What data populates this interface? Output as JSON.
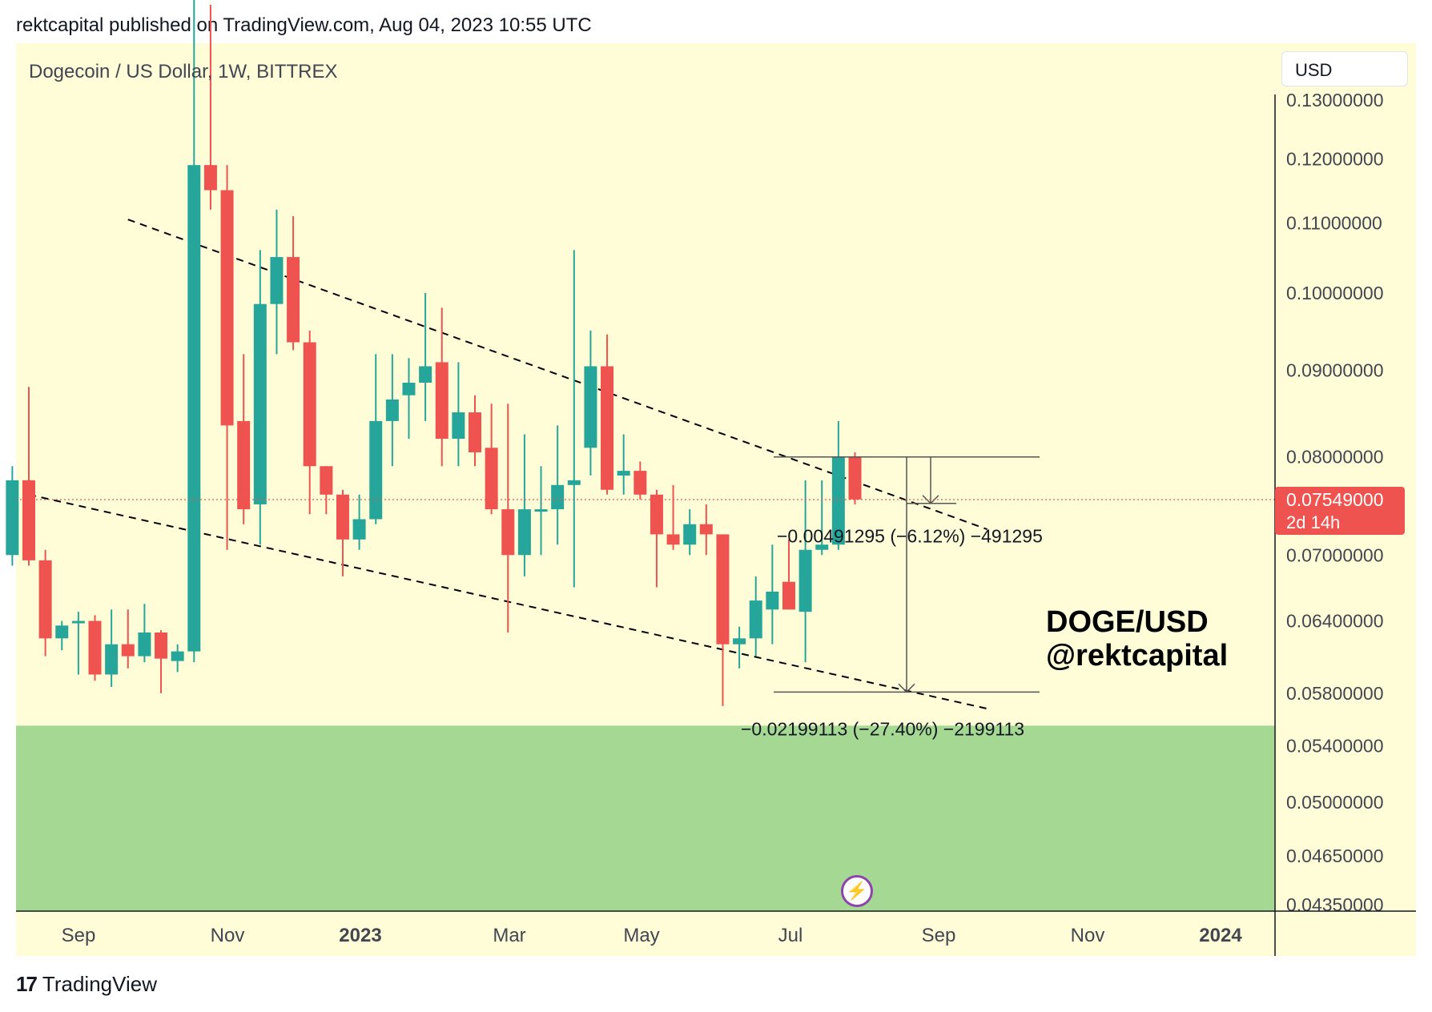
{
  "header": {
    "published_text": "rektcapital published on TradingView.com, Aug 04, 2023 10:55 UTC"
  },
  "chart_title": "Dogecoin / US Dollar, 1W, BITTREX",
  "currency_label": "USD",
  "watermark": {
    "line1": "DOGE/USD",
    "line2": "@rektcapital"
  },
  "footer": {
    "logo_icon": "tradingview-logo-icon",
    "brand": "TradingView"
  },
  "colors": {
    "background": "#fefdd8",
    "support_zone": "#a5d893",
    "bull": "#26a69a",
    "bear": "#ef5350",
    "price_line": "#ef5350",
    "trendline": "#000000"
  },
  "chart_data": {
    "type": "candlestick",
    "timeframe": "1W",
    "symbol": "DOGE/USD",
    "exchange": "BITTREX",
    "y_axis": {
      "position": "right",
      "scale": "log",
      "range": [
        0.0435,
        0.132
      ],
      "tick_labels": [
        "0.13000000",
        "0.12000000",
        "0.11000000",
        "0.10000000",
        "0.09000000",
        "0.08000000",
        "0.07000000",
        "0.06400000",
        "0.05800000",
        "0.05400000",
        "0.05000000",
        "0.04650000",
        "0.04350000"
      ]
    },
    "x_axis": {
      "tick_labels": [
        {
          "label": "Sep",
          "bold": false
        },
        {
          "label": "Nov",
          "bold": false
        },
        {
          "label": "2023",
          "bold": true
        },
        {
          "label": "Mar",
          "bold": false
        },
        {
          "label": "May",
          "bold": false
        },
        {
          "label": "Jul",
          "bold": false
        },
        {
          "label": "Sep",
          "bold": false
        },
        {
          "label": "Nov",
          "bold": false
        },
        {
          "label": "2024",
          "bold": true
        }
      ]
    },
    "candles": [
      {
        "date": "2022-08-08",
        "o": 0.07,
        "h": 0.079,
        "l": 0.069,
        "c": 0.0775
      },
      {
        "date": "2022-08-15",
        "o": 0.0775,
        "h": 0.088,
        "l": 0.069,
        "c": 0.0695
      },
      {
        "date": "2022-08-22",
        "o": 0.0695,
        "h": 0.0705,
        "l": 0.061,
        "c": 0.0625
      },
      {
        "date": "2022-08-29",
        "o": 0.0625,
        "h": 0.064,
        "l": 0.0615,
        "c": 0.0636
      },
      {
        "date": "2022-09-05",
        "o": 0.0638,
        "h": 0.0648,
        "l": 0.0595,
        "c": 0.064
      },
      {
        "date": "2022-09-12",
        "o": 0.064,
        "h": 0.0645,
        "l": 0.059,
        "c": 0.0595
      },
      {
        "date": "2022-09-19",
        "o": 0.0595,
        "h": 0.065,
        "l": 0.0585,
        "c": 0.062
      },
      {
        "date": "2022-09-26",
        "o": 0.062,
        "h": 0.065,
        "l": 0.06,
        "c": 0.061
      },
      {
        "date": "2022-10-03",
        "o": 0.061,
        "h": 0.0655,
        "l": 0.0605,
        "c": 0.063
      },
      {
        "date": "2022-10-10",
        "o": 0.063,
        "h": 0.0632,
        "l": 0.058,
        "c": 0.0608
      },
      {
        "date": "2022-10-17",
        "o": 0.0606,
        "h": 0.062,
        "l": 0.0597,
        "c": 0.0614
      },
      {
        "date": "2022-10-24",
        "o": 0.0614,
        "h": 0.155,
        "l": 0.0605,
        "c": 0.119
      },
      {
        "date": "2022-10-31",
        "o": 0.119,
        "h": 0.148,
        "l": 0.112,
        "c": 0.115
      },
      {
        "date": "2022-11-07",
        "o": 0.115,
        "h": 0.119,
        "l": 0.0705,
        "c": 0.0835
      },
      {
        "date": "2022-11-14",
        "o": 0.084,
        "h": 0.092,
        "l": 0.073,
        "c": 0.0745
      },
      {
        "date": "2022-11-21",
        "o": 0.075,
        "h": 0.106,
        "l": 0.071,
        "c": 0.0985
      },
      {
        "date": "2022-11-28",
        "o": 0.0985,
        "h": 0.112,
        "l": 0.092,
        "c": 0.105
      },
      {
        "date": "2022-12-05",
        "o": 0.105,
        "h": 0.111,
        "l": 0.0925,
        "c": 0.0935
      },
      {
        "date": "2022-12-12",
        "o": 0.0935,
        "h": 0.095,
        "l": 0.074,
        "c": 0.079
      },
      {
        "date": "2022-12-19",
        "o": 0.079,
        "h": 0.079,
        "l": 0.074,
        "c": 0.076
      },
      {
        "date": "2022-12-26",
        "o": 0.076,
        "h": 0.0765,
        "l": 0.068,
        "c": 0.0715
      },
      {
        "date": "2023-01-02",
        "o": 0.0715,
        "h": 0.076,
        "l": 0.0705,
        "c": 0.0735
      },
      {
        "date": "2023-01-09",
        "o": 0.0735,
        "h": 0.092,
        "l": 0.073,
        "c": 0.084
      },
      {
        "date": "2023-01-16",
        "o": 0.084,
        "h": 0.092,
        "l": 0.079,
        "c": 0.0865
      },
      {
        "date": "2023-01-23",
        "o": 0.087,
        "h": 0.0915,
        "l": 0.082,
        "c": 0.0885
      },
      {
        "date": "2023-01-30",
        "o": 0.0885,
        "h": 0.1,
        "l": 0.084,
        "c": 0.0905
      },
      {
        "date": "2023-02-06",
        "o": 0.091,
        "h": 0.098,
        "l": 0.079,
        "c": 0.082
      },
      {
        "date": "2023-02-13",
        "o": 0.082,
        "h": 0.091,
        "l": 0.079,
        "c": 0.085
      },
      {
        "date": "2023-02-20",
        "o": 0.085,
        "h": 0.087,
        "l": 0.079,
        "c": 0.0805
      },
      {
        "date": "2023-02-27",
        "o": 0.081,
        "h": 0.086,
        "l": 0.074,
        "c": 0.0745
      },
      {
        "date": "2023-03-06",
        "o": 0.0745,
        "h": 0.086,
        "l": 0.063,
        "c": 0.07
      },
      {
        "date": "2023-03-13",
        "o": 0.07,
        "h": 0.0825,
        "l": 0.068,
        "c": 0.0745
      },
      {
        "date": "2023-03-20",
        "o": 0.0745,
        "h": 0.079,
        "l": 0.07,
        "c": 0.0745
      },
      {
        "date": "2023-03-27",
        "o": 0.0745,
        "h": 0.0835,
        "l": 0.071,
        "c": 0.077
      },
      {
        "date": "2023-04-03",
        "o": 0.077,
        "h": 0.106,
        "l": 0.067,
        "c": 0.0775
      },
      {
        "date": "2023-04-10",
        "o": 0.081,
        "h": 0.095,
        "l": 0.078,
        "c": 0.0905
      },
      {
        "date": "2023-04-17",
        "o": 0.0905,
        "h": 0.0945,
        "l": 0.076,
        "c": 0.0765
      },
      {
        "date": "2023-04-24",
        "o": 0.078,
        "h": 0.0825,
        "l": 0.076,
        "c": 0.0785
      },
      {
        "date": "2023-05-01",
        "o": 0.0785,
        "h": 0.0795,
        "l": 0.0755,
        "c": 0.076
      },
      {
        "date": "2023-05-08",
        "o": 0.076,
        "h": 0.0765,
        "l": 0.067,
        "c": 0.072
      },
      {
        "date": "2023-05-15",
        "o": 0.072,
        "h": 0.077,
        "l": 0.0705,
        "c": 0.071
      },
      {
        "date": "2023-05-22",
        "o": 0.071,
        "h": 0.0745,
        "l": 0.07,
        "c": 0.073
      },
      {
        "date": "2023-05-29",
        "o": 0.073,
        "h": 0.075,
        "l": 0.07,
        "c": 0.072
      },
      {
        "date": "2023-06-05",
        "o": 0.072,
        "h": 0.072,
        "l": 0.057,
        "c": 0.062
      },
      {
        "date": "2023-06-12",
        "o": 0.062,
        "h": 0.0635,
        "l": 0.06,
        "c": 0.0625
      },
      {
        "date": "2023-06-19",
        "o": 0.0625,
        "h": 0.068,
        "l": 0.061,
        "c": 0.0658
      },
      {
        "date": "2023-06-26",
        "o": 0.065,
        "h": 0.071,
        "l": 0.062,
        "c": 0.0666
      },
      {
        "date": "2023-07-03",
        "o": 0.0675,
        "h": 0.0715,
        "l": 0.065,
        "c": 0.065
      },
      {
        "date": "2023-07-10",
        "o": 0.0648,
        "h": 0.0775,
        "l": 0.0605,
        "c": 0.0705
      },
      {
        "date": "2023-07-17",
        "o": 0.0705,
        "h": 0.0775,
        "l": 0.07,
        "c": 0.071
      },
      {
        "date": "2023-07-24",
        "o": 0.071,
        "h": 0.084,
        "l": 0.0705,
        "c": 0.08
      },
      {
        "date": "2023-07-31",
        "o": 0.08,
        "h": 0.0805,
        "l": 0.075,
        "c": 0.0755
      }
    ],
    "last_price": {
      "value": "0.07549000",
      "countdown": "2d 14h"
    },
    "support_zone": {
      "from": 0.0435,
      "to": 0.0555
    },
    "trendlines": [
      {
        "name": "upper-trendline",
        "points": [
          [
            "2022-09-26",
            0.1105
          ],
          [
            "2023-09-25",
            0.0725
          ]
        ]
      },
      {
        "name": "lower-trendline",
        "points": [
          [
            "2022-08-15",
            0.076
          ],
          [
            "2023-09-25",
            0.0568
          ]
        ]
      }
    ],
    "measurements": [
      {
        "name": "measure-small",
        "from": 0.08,
        "to": 0.0751,
        "label": "−0.00491295 (−6.12%) −491295"
      },
      {
        "name": "measure-large",
        "from": 0.08,
        "to": 0.0581,
        "label": "−0.02199113 (−27.40%) −2199113"
      }
    ]
  }
}
